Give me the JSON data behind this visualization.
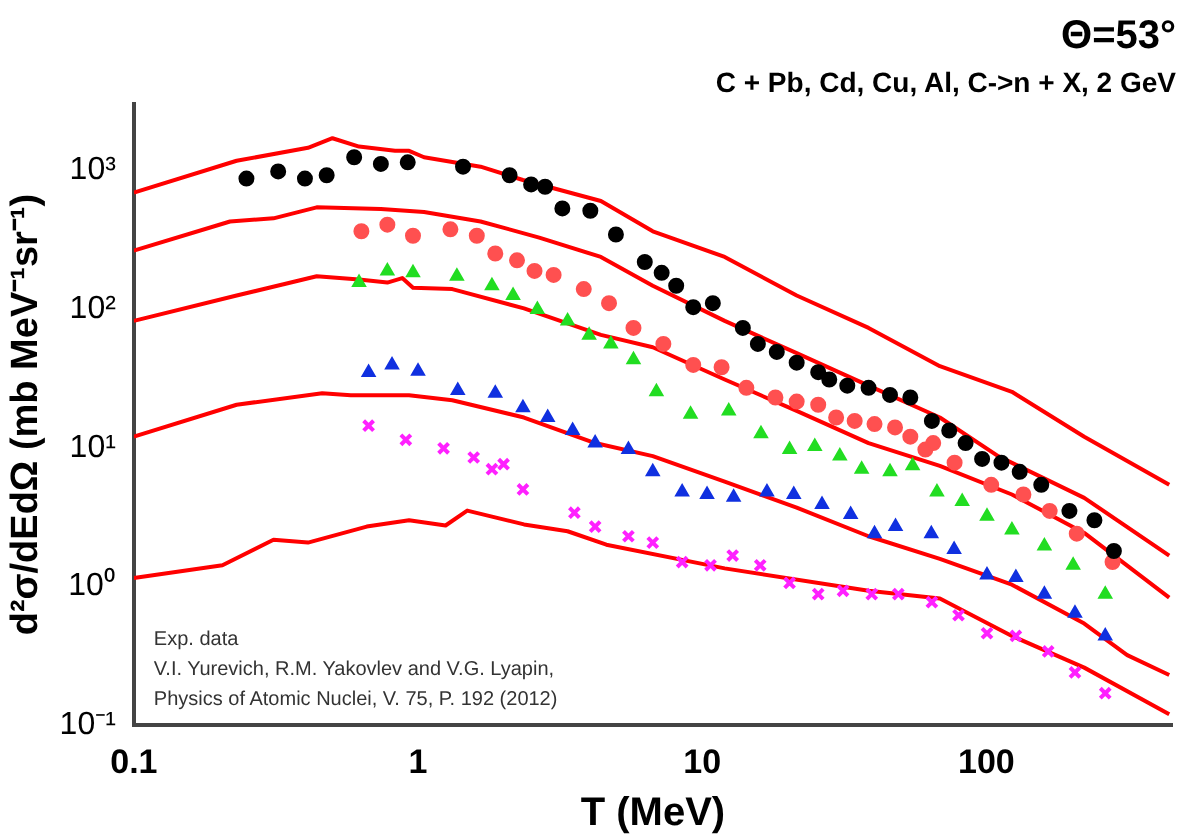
{
  "chart_data": {
    "type": "scatter",
    "title": "C + Pb, Cd, Cu, Al, C->n + X, 2 GeV",
    "xlabel": "T (MeV)",
    "ylabel": "d²σ/dEdΩ (mb MeV⁻¹sr⁻¹)",
    "annotations": [
      "Θ=53°",
      "Exp. data",
      "V.I. Yurevich, R.M. Yakovlev and V.G. Lyapin,",
      "Physics of Atomic Nuclei, V. 75, P. 192 (2012)"
    ],
    "log": "xy",
    "xlim": [
      0.1,
      450
    ],
    "ylim": [
      0.1,
      3000
    ],
    "xticks": [
      0.1,
      1,
      10,
      100
    ],
    "yticks": [
      {
        "value": 0.1,
        "label": "10⁻¹"
      },
      {
        "value": 1,
        "label": "10⁰"
      },
      {
        "value": 10,
        "label": "10¹"
      },
      {
        "value": 100,
        "label": "10²"
      },
      {
        "value": 1000,
        "label": "10³"
      }
    ],
    "grid": false,
    "legend": false,
    "series": [
      {
        "type": "scatter",
        "marker": "circle",
        "color": "#000000",
        "x": [
          0.249,
          0.322,
          0.4,
          0.477,
          0.596,
          0.74,
          0.92,
          1.44,
          2.1,
          2.5,
          2.8,
          3.22,
          4.04,
          4.97,
          6.28,
          7.2,
          8.1,
          9.3,
          10.9,
          13.9,
          15.7,
          18.3,
          21.5,
          25.6,
          28,
          32.4,
          38.5,
          45.8,
          54,
          64.3,
          74,
          84.5,
          96.6,
          113,
          131,
          156,
          196,
          240,
          281
        ],
        "values": [
          870,
          980,
          870,
          920,
          1240,
          1110,
          1140,
          1060,
          920,
          790,
          760,
          530,
          510,
          344,
          218,
          182,
          147,
          103,
          110,
          73,
          56,
          49,
          41,
          35,
          31,
          28,
          27,
          24,
          23,
          15.6,
          13.3,
          10.8,
          8.3,
          7.8,
          6.7,
          5.4,
          3.5,
          3.0,
          1.8
        ]
      },
      {
        "type": "scatter",
        "marker": "circle",
        "color": "#ff5050",
        "x": [
          0.632,
          0.78,
          0.96,
          1.3,
          1.61,
          1.87,
          2.23,
          2.57,
          3.0,
          3.83,
          4.7,
          5.73,
          7.3,
          9.3,
          11.7,
          14.3,
          18.1,
          21.5,
          25.6,
          29.6,
          34.4,
          40.4,
          47.7,
          54,
          61,
          65,
          77.3,
          104,
          135,
          167,
          208,
          278
        ],
        "values": [
          363,
          405,
          337,
          375,
          337,
          251,
          224,
          188,
          176,
          139,
          110,
          73,
          56,
          39.5,
          38,
          27,
          23,
          21.5,
          20.4,
          16.5,
          15.6,
          14.8,
          14,
          12,
          9.7,
          10.8,
          7.8,
          5.4,
          4.6,
          3.5,
          2.4,
          1.5
        ]
      },
      {
        "type": "scatter",
        "marker": "triangle",
        "color": "#22dd22",
        "x": [
          0.62,
          0.78,
          0.96,
          1.37,
          1.82,
          2.16,
          2.63,
          3.36,
          4.0,
          4.77,
          5.73,
          6.9,
          9.1,
          12.4,
          16.1,
          20.3,
          24.9,
          30.5,
          36.4,
          45.8,
          55,
          67,
          82.2,
          100.5,
          123,
          160,
          202,
          262
        ],
        "values": [
          155,
          188,
          182,
          172,
          147,
          125,
          99,
          82,
          64.5,
          56,
          43,
          25.3,
          17.4,
          18.4,
          12.6,
          9.7,
          10.2,
          8.7,
          7.0,
          6.7,
          7.4,
          4.8,
          4.1,
          3.2,
          2.55,
          1.96,
          1.42,
          0.88
        ]
      },
      {
        "type": "scatter",
        "marker": "triangle",
        "color": "#1030e0",
        "x": [
          0.67,
          0.81,
          1.0,
          1.38,
          1.87,
          2.34,
          2.86,
          3.5,
          4.2,
          5.5,
          6.7,
          8.5,
          10.4,
          12.9,
          16.9,
          21,
          26.4,
          33.3,
          40.4,
          47.9,
          64,
          77,
          100.5,
          127,
          160,
          205,
          262
        ],
        "values": [
          34.8,
          39.5,
          35.5,
          25.8,
          24.7,
          19.4,
          16.5,
          13.3,
          10.8,
          9.7,
          6.7,
          4.8,
          4.6,
          4.4,
          4.8,
          4.6,
          3.9,
          3.3,
          2.4,
          2.7,
          2.4,
          1.85,
          1.21,
          1.16,
          0.88,
          0.64,
          0.44
        ]
      },
      {
        "type": "scatter",
        "marker": "cross",
        "color": "#ff20ff",
        "x": [
          0.67,
          0.906,
          1.23,
          1.57,
          1.82,
          2.0,
          2.34,
          3.55,
          4.2,
          5.5,
          6.7,
          8.5,
          10.7,
          12.8,
          16,
          20.3,
          25.6,
          31.3,
          39.5,
          49,
          64.3,
          79.8,
          100.5,
          127,
          165,
          205,
          262
        ],
        "values": [
          14.4,
          11.4,
          9.9,
          8.5,
          7.0,
          7.6,
          5.0,
          3.4,
          2.7,
          2.3,
          2.07,
          1.5,
          1.42,
          1.67,
          1.42,
          1.06,
          0.88,
          0.93,
          0.88,
          0.88,
          0.77,
          0.62,
          0.46,
          0.44,
          0.34,
          0.24,
          0.17
        ]
      },
      {
        "type": "line",
        "marker": "none",
        "color": "#ff0000",
        "x": [
          0.1,
          0.23,
          0.41,
          0.5,
          0.62,
          0.83,
          0.93,
          1.05,
          1.66,
          2.34,
          4.4,
          6.7,
          12,
          21.5,
          38.5,
          51.5,
          68.6,
          123,
          221,
          440
        ],
        "values": [
          690,
          1170,
          1450,
          1700,
          1480,
          1380,
          1380,
          1240,
          1060,
          850,
          600,
          363,
          237,
          125,
          73,
          53,
          38.7,
          25.3,
          12,
          5.4
        ]
      },
      {
        "type": "line",
        "marker": "none",
        "color": "#ff0000",
        "x": [
          0.1,
          0.218,
          0.31,
          0.44,
          0.74,
          1.05,
          1.66,
          2.67,
          4.4,
          6.7,
          12,
          21.5,
          38.5,
          68.6,
          110,
          221,
          440
        ],
        "values": [
          263,
          427,
          450,
          540,
          525,
          500,
          427,
          327,
          237,
          147,
          82,
          48,
          28,
          16.5,
          8.7,
          4.35,
          1.67
        ]
      },
      {
        "type": "line",
        "marker": "none",
        "color": "#ff0000",
        "x": [
          0.1,
          0.23,
          0.44,
          0.62,
          0.78,
          0.88,
          0.96,
          1.32,
          2.36,
          4.4,
          6.7,
          12,
          21.5,
          38.5,
          68.6,
          123,
          221,
          440
        ],
        "values": [
          82,
          125,
          172,
          163,
          155,
          167,
          142,
          139,
          101,
          65,
          53,
          31,
          18.4,
          10.8,
          7.4,
          4.6,
          2.43,
          0.83
        ]
      },
      {
        "type": "line",
        "marker": "none",
        "color": "#ff0000",
        "x": [
          0.1,
          0.23,
          0.46,
          0.58,
          0.93,
          1.32,
          2.36,
          4.2,
          6.7,
          12,
          21.5,
          38.5,
          68.6,
          123,
          221,
          313,
          440
        ],
        "values": [
          12,
          20.4,
          24.7,
          23.9,
          23.9,
          22,
          16.5,
          10.8,
          8.7,
          5.7,
          3.7,
          2.3,
          1.58,
          1.03,
          0.54,
          0.32,
          0.23
        ]
      },
      {
        "type": "line",
        "marker": "none",
        "color": "#ff0000",
        "x": [
          0.1,
          0.205,
          0.31,
          0.41,
          0.66,
          0.93,
          1.25,
          1.49,
          2.36,
          3.36,
          4.6,
          12,
          38.5,
          68.6,
          123,
          221,
          440
        ],
        "values": [
          1.15,
          1.42,
          2.17,
          2.07,
          2.7,
          3.0,
          2.75,
          3.52,
          2.8,
          2.5,
          2.0,
          1.35,
          0.93,
          0.82,
          0.44,
          0.26,
          0.12
        ]
      }
    ]
  }
}
